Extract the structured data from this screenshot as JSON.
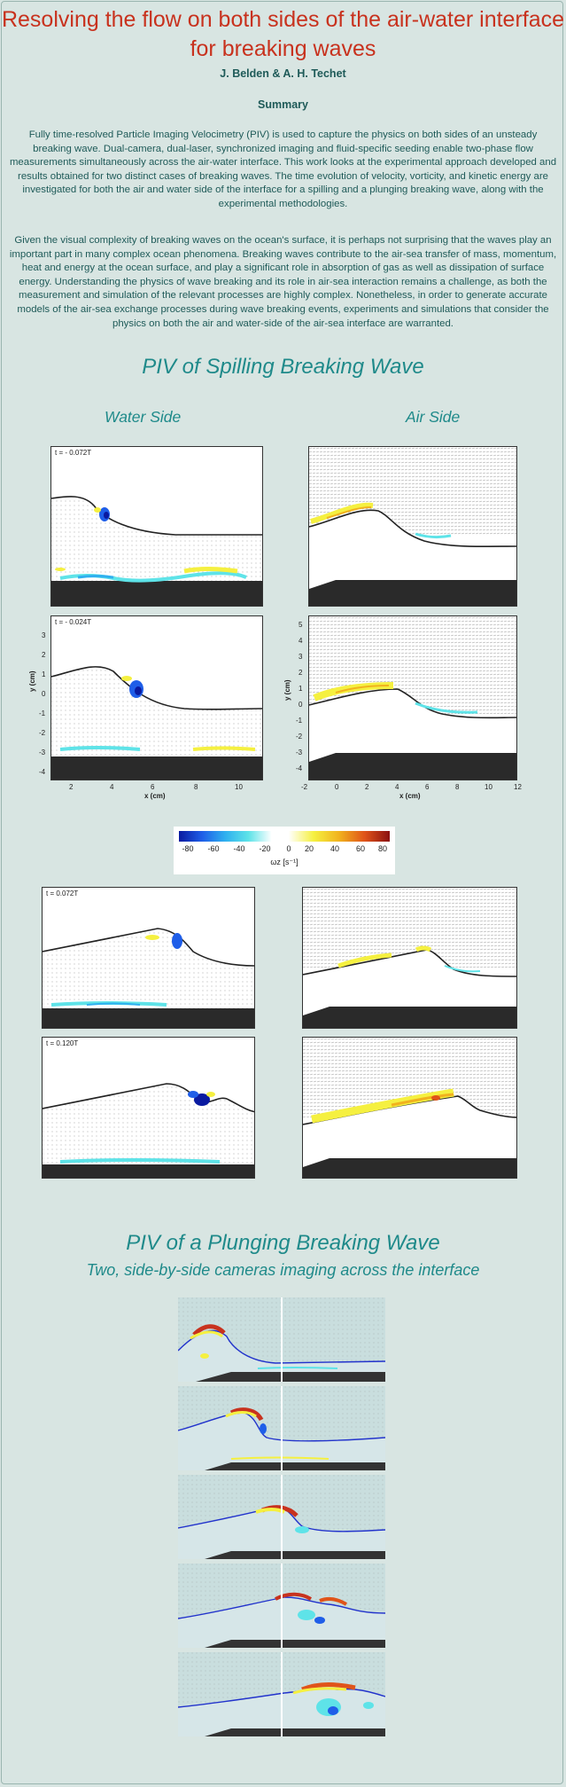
{
  "header": {
    "title_line1": "Resolving the flow on both sides of the air-water interface",
    "title_line2": "for breaking waves",
    "authors": "J. Belden & A. H. Techet",
    "summary_heading": "Summary"
  },
  "summary": {
    "para1": "Fully time-resolved Particle Imaging Velocimetry (PIV) is used to capture the physics on both sides of an unsteady breaking wave. Dual-camera, dual-laser, synchronized imaging and fluid-specific seeding enable two-phase flow measurements simultaneously across the air-water interface. This work looks at the experimental approach developed and results obtained for two distinct cases of breaking waves. The time evolution of velocity, vorticity, and kinetic energy are investigated for both the air and water side of the interface for a spilling and a plunging breaking wave, along with the experimental methodologies.",
    "para2": "Given the visual complexity of breaking waves on the ocean's surface, it is perhaps not surprising that the waves play an important part in many complex ocean phenomena. Breaking waves contribute to the air-sea transfer of mass, momentum, heat and energy at the ocean surface, and play a significant role in absorption of gas as well as dissipation of surface energy. Understanding the physics of wave breaking and its role in air-sea interaction remains a challenge, as both the measurement and simulation of the relevant processes are highly complex. Nonetheless, in order to generate accurate models of the air-sea exchange processes during wave breaking events, experiments and simulations that consider the physics on both the air and water-side of the air-sea interface are warranted."
  },
  "spilling": {
    "heading": "PIV of Spilling Breaking Wave",
    "water_side": "Water Side",
    "air_side": "Air Side",
    "times": [
      "t = - 0.072T",
      "t = - 0.024T",
      "t = 0.072T",
      "t = 0.120T"
    ],
    "water_axes": {
      "ylabel": "y (cm)",
      "xlabel": "x (cm)",
      "yticks": [
        "3",
        "2",
        "1",
        "0",
        "-1",
        "-2",
        "-3",
        "-4"
      ],
      "xticks": [
        "2",
        "4",
        "6",
        "8",
        "10"
      ]
    },
    "air_axes": {
      "ylabel": "y (cm)",
      "xlabel": "x (cm)",
      "yticks": [
        "5",
        "4",
        "3",
        "2",
        "1",
        "0",
        "-1",
        "-2",
        "-3",
        "-4"
      ],
      "xticks": [
        "-2",
        "0",
        "2",
        "4",
        "6",
        "8",
        "10",
        "12"
      ]
    },
    "colorbar": {
      "ticks": [
        "-80",
        "-60",
        "-40",
        "-20",
        "0",
        "20",
        "40",
        "60",
        "80"
      ],
      "unit": "ωz [s⁻¹]"
    }
  },
  "plunging": {
    "heading": "PIV of a Plunging Breaking Wave",
    "subheading": "Two, side-by-side cameras imaging across the interface"
  },
  "colors": {
    "title": "#c8321e",
    "heading": "#1f8a8a",
    "body_text": "#1e5a58",
    "background": "#d8e5e2"
  }
}
